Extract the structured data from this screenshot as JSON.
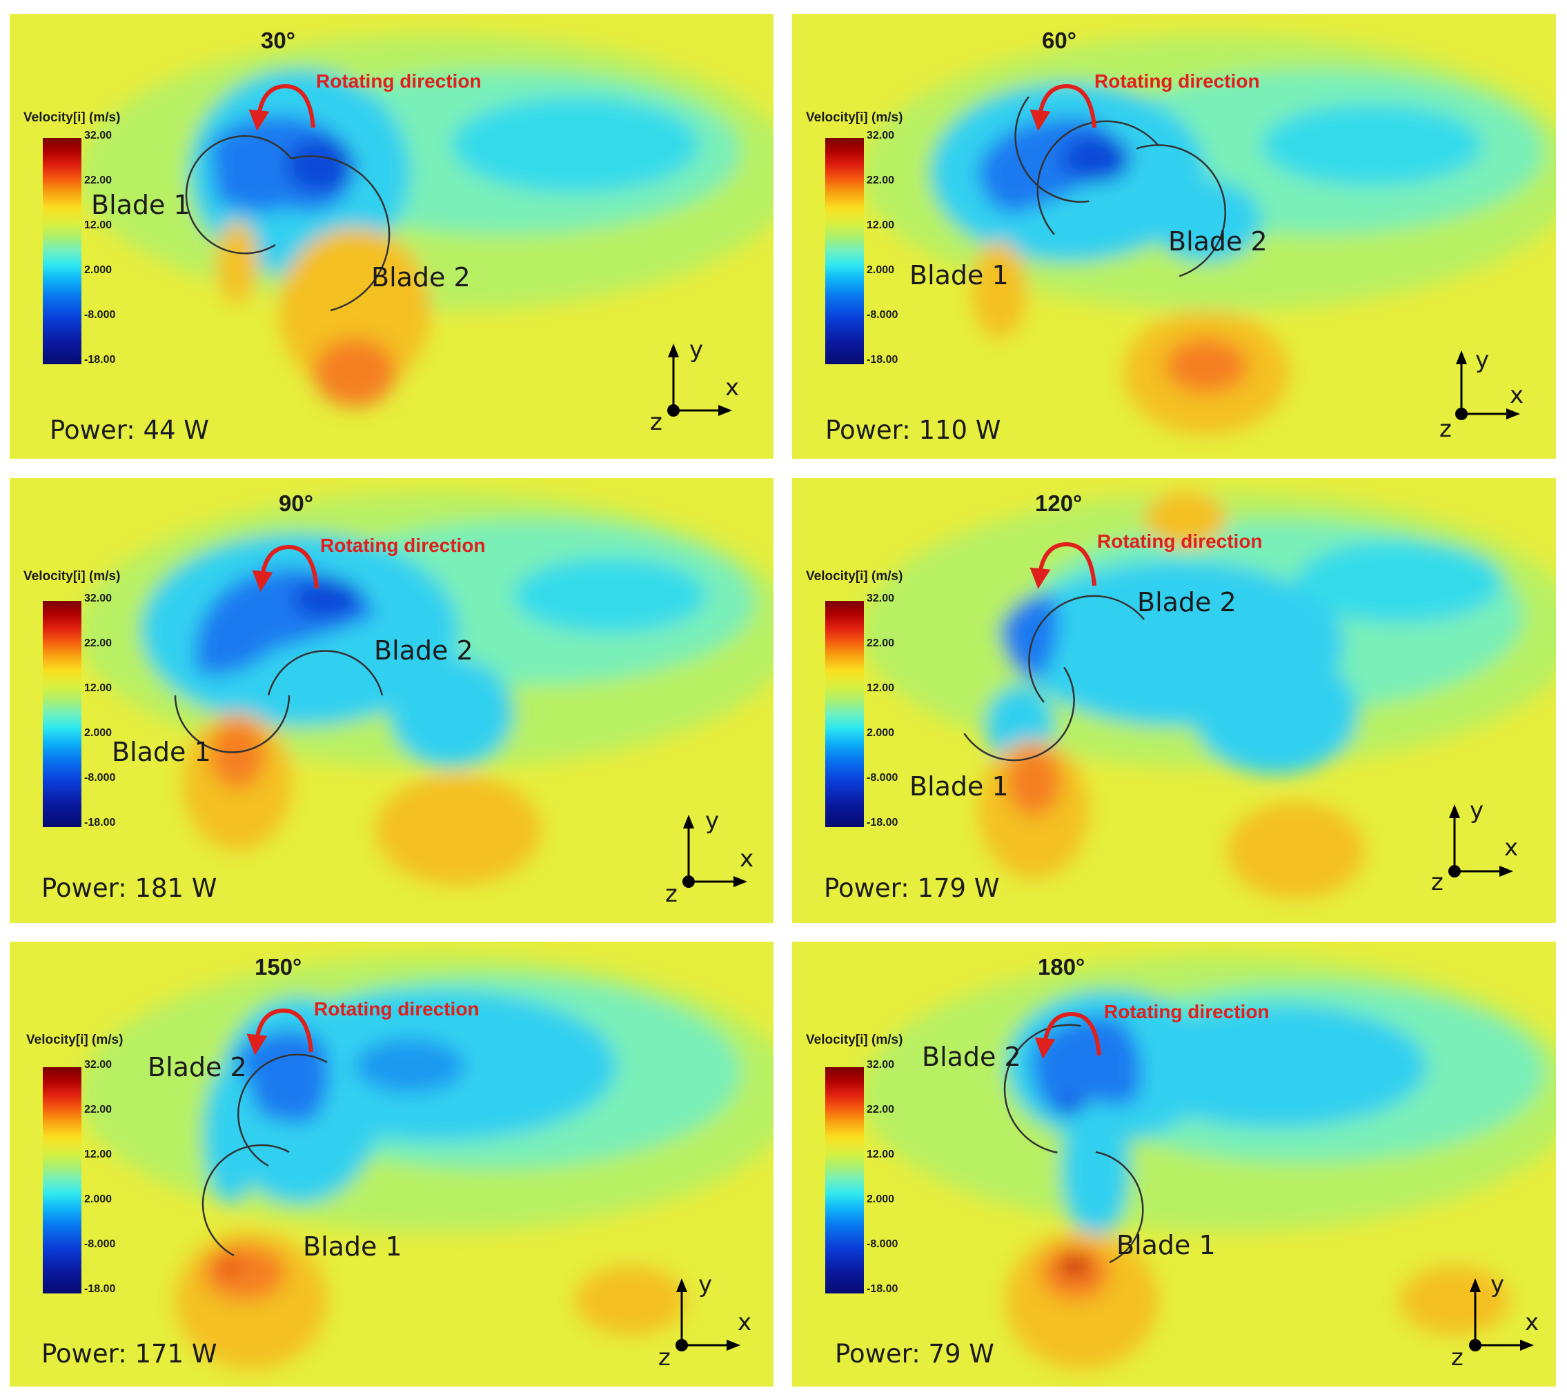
{
  "colorbar": {
    "title": "Velocity[i] (m/s)",
    "ticks": [
      "32.00",
      "22.00",
      "12.00",
      "2.000",
      "-8.000",
      "-18.00"
    ]
  },
  "rotating_label": "Rotating direction",
  "axis_labels": {
    "y": "y",
    "x": "x",
    "z": "z"
  },
  "colors": {
    "background_field": "#e8ee3e",
    "accent": "#e0201c"
  },
  "panels": [
    {
      "angle": "30°",
      "blade1": "Blade 1",
      "blade2": "Blade 2",
      "power": "Power: 44  W"
    },
    {
      "angle": "60°",
      "blade1": "Blade 1",
      "blade2": "Blade 2",
      "power": "Power: 110  W"
    },
    {
      "angle": "90°",
      "blade1": "Blade 1",
      "blade2": "Blade 2",
      "power": "Power: 181  W"
    },
    {
      "angle": "120°",
      "blade1": "Blade 1",
      "blade2": "Blade 2",
      "power": "Power: 179  W"
    },
    {
      "angle": "150°",
      "blade1": "Blade 1",
      "blade2": "Blade 2",
      "power": "Power: 171  W"
    },
    {
      "angle": "180°",
      "blade1": "Blade 1",
      "blade2": "Blade 2",
      "power": "Power: 79  W"
    }
  ]
}
